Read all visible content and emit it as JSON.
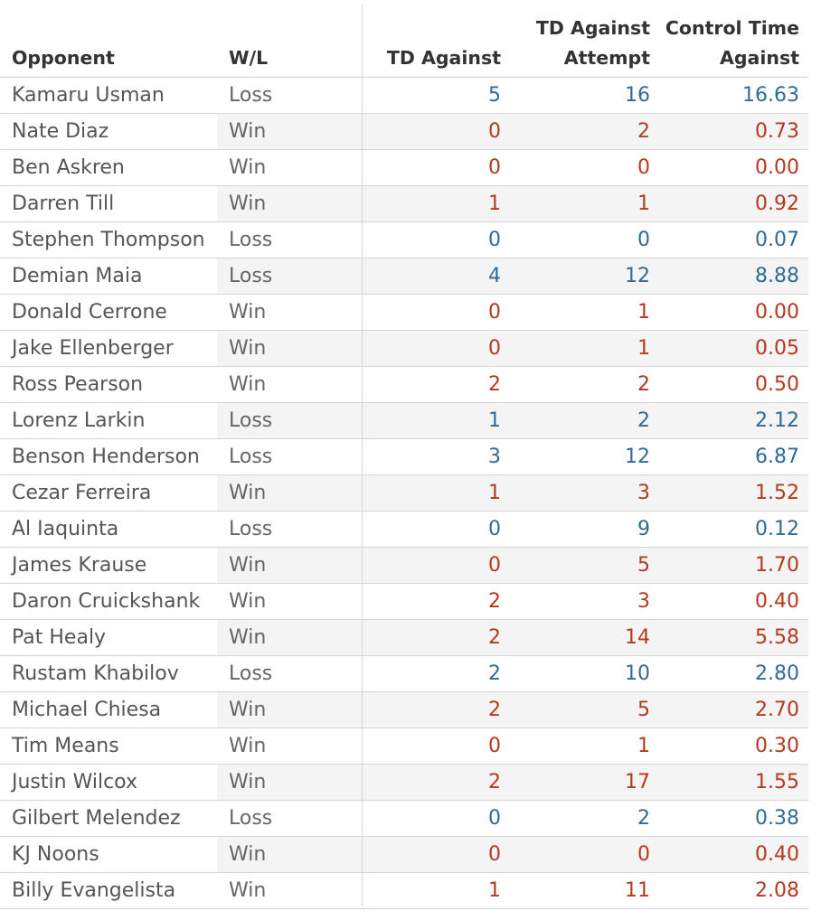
{
  "columns": {
    "opponent": "Opponent",
    "wl": "W/L",
    "td_against": "TD Against",
    "td_against_attempt_line1": "TD Against",
    "td_against_attempt_line2": "Attempt",
    "control_time_line1": "Control Time",
    "control_time_line2": "Against"
  },
  "colors": {
    "loss_row_number": "#2f6b99",
    "win_row_number": "#b5391e",
    "band_gray": "#f4f4f4",
    "grid": "#d4d4d4"
  },
  "chart_data": {
    "type": "table",
    "rows": [
      {
        "opponent": "Kamaru Usman",
        "wl": "Loss",
        "td_against": "5",
        "td_against_attempt": "16",
        "control_time_against": "16.63"
      },
      {
        "opponent": "Nate Diaz",
        "wl": "Win",
        "td_against": "0",
        "td_against_attempt": "2",
        "control_time_against": "0.73"
      },
      {
        "opponent": "Ben Askren",
        "wl": "Win",
        "td_against": "0",
        "td_against_attempt": "0",
        "control_time_against": "0.00"
      },
      {
        "opponent": "Darren Till",
        "wl": "Win",
        "td_against": "1",
        "td_against_attempt": "1",
        "control_time_against": "0.92"
      },
      {
        "opponent": "Stephen Thompson",
        "wl": "Loss",
        "td_against": "0",
        "td_against_attempt": "0",
        "control_time_against": "0.07"
      },
      {
        "opponent": "Demian Maia",
        "wl": "Loss",
        "td_against": "4",
        "td_against_attempt": "12",
        "control_time_against": "8.88"
      },
      {
        "opponent": "Donald Cerrone",
        "wl": "Win",
        "td_against": "0",
        "td_against_attempt": "1",
        "control_time_against": "0.00"
      },
      {
        "opponent": "Jake Ellenberger",
        "wl": "Win",
        "td_against": "0",
        "td_against_attempt": "1",
        "control_time_against": "0.05"
      },
      {
        "opponent": "Ross Pearson",
        "wl": "Win",
        "td_against": "2",
        "td_against_attempt": "2",
        "control_time_against": "0.50"
      },
      {
        "opponent": "Lorenz Larkin",
        "wl": "Loss",
        "td_against": "1",
        "td_against_attempt": "2",
        "control_time_against": "2.12"
      },
      {
        "opponent": "Benson Henderson",
        "wl": "Loss",
        "td_against": "3",
        "td_against_attempt": "12",
        "control_time_against": "6.87"
      },
      {
        "opponent": "Cezar Ferreira",
        "wl": "Win",
        "td_against": "1",
        "td_against_attempt": "3",
        "control_time_against": "1.52"
      },
      {
        "opponent": "Al Iaquinta",
        "wl": "Loss",
        "td_against": "0",
        "td_against_attempt": "9",
        "control_time_against": "0.12"
      },
      {
        "opponent": "James Krause",
        "wl": "Win",
        "td_against": "0",
        "td_against_attempt": "5",
        "control_time_against": "1.70"
      },
      {
        "opponent": "Daron Cruickshank",
        "wl": "Win",
        "td_against": "2",
        "td_against_attempt": "3",
        "control_time_against": "0.40"
      },
      {
        "opponent": "Pat Healy",
        "wl": "Win",
        "td_against": "2",
        "td_against_attempt": "14",
        "control_time_against": "5.58"
      },
      {
        "opponent": "Rustam Khabilov",
        "wl": "Loss",
        "td_against": "2",
        "td_against_attempt": "10",
        "control_time_against": "2.80"
      },
      {
        "opponent": "Michael Chiesa",
        "wl": "Win",
        "td_against": "2",
        "td_against_attempt": "5",
        "control_time_against": "2.70"
      },
      {
        "opponent": "Tim Means",
        "wl": "Win",
        "td_against": "0",
        "td_against_attempt": "1",
        "control_time_against": "0.30"
      },
      {
        "opponent": "Justin Wilcox",
        "wl": "Win",
        "td_against": "2",
        "td_against_attempt": "17",
        "control_time_against": "1.55"
      },
      {
        "opponent": "Gilbert Melendez",
        "wl": "Loss",
        "td_against": "0",
        "td_against_attempt": "2",
        "control_time_against": "0.38"
      },
      {
        "opponent": "KJ Noons",
        "wl": "Win",
        "td_against": "0",
        "td_against_attempt": "0",
        "control_time_against": "0.40"
      },
      {
        "opponent": "Billy Evangelista",
        "wl": "Win",
        "td_against": "1",
        "td_against_attempt": "11",
        "control_time_against": "2.08"
      }
    ]
  }
}
